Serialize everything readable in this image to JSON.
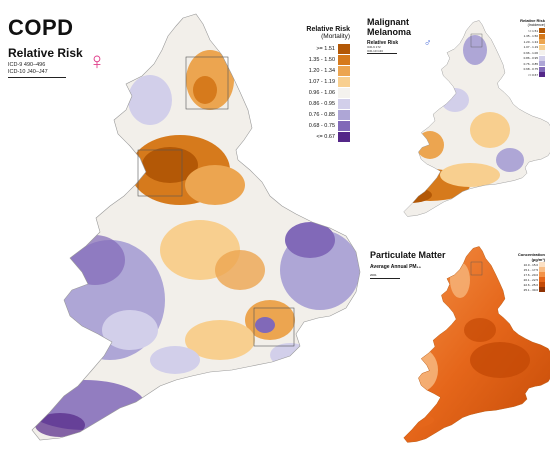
{
  "main_map": {
    "title": "COPD",
    "subtitle": "Relative Risk",
    "codes": [
      "ICD-9  490–496",
      "ICD-10  J40–J47"
    ],
    "sex_symbol": "♀",
    "legend": {
      "title": "Relative Risk",
      "subtitle": "(Mortality)",
      "classes": [
        {
          "label": ">= 1.51",
          "color": "#b35806"
        },
        {
          "label": "1.35 - 1.50",
          "color": "#d67a1c"
        },
        {
          "label": "1.20 - 1.34",
          "color": "#eca550"
        },
        {
          "label": "1.07 - 1.19",
          "color": "#f8cf8f"
        },
        {
          "label": "0.96 - 1.06",
          "color": "#f4f2ee"
        },
        {
          "label": "0.86 - 0.95",
          "color": "#d2cfea"
        },
        {
          "label": "0.76 - 0.85",
          "color": "#aea6d6"
        },
        {
          "label": "0.68 - 0.75",
          "color": "#8169b8"
        },
        {
          "label": "<= 0.67",
          "color": "#542788"
        }
      ]
    }
  },
  "melanoma_map": {
    "title": "Malignant Melanoma",
    "subtitle": "Relative Risk",
    "codes": [
      "ICD-9  172",
      "ICD-10  C43"
    ],
    "sex_symbol": "♂",
    "legend": {
      "title": "Relative Risk",
      "subtitle": "(Incidence)",
      "labels": [
        ">= 1.51",
        "1.35 - 1.50",
        "1.20 - 1.34",
        "1.07 - 1.19",
        "0.96 - 1.06",
        "0.86 - 0.95",
        "0.76 - 0.85",
        "0.68 - 0.75",
        "<= 0.67"
      ]
    }
  },
  "pm_map": {
    "title": "Particulate Matter",
    "subtitle": "Average Annual PM₁₀",
    "year": "2001",
    "legend": {
      "title": "Concentration (µg/m³)",
      "classes": [
        {
          "label": "10.0 - 15.0",
          "color": "#fbe0c4"
        },
        {
          "label": "15.1 - 17.5",
          "color": "#f8bd86"
        },
        {
          "label": "17.6 - 20.0",
          "color": "#f39248"
        },
        {
          "label": "20.1 - 22.5",
          "color": "#e5661a"
        },
        {
          "label": "22.6 - 25.0",
          "color": "#c44a06"
        },
        {
          "label": "25.1 - 30.0",
          "color": "#8f3203"
        }
      ]
    }
  }
}
